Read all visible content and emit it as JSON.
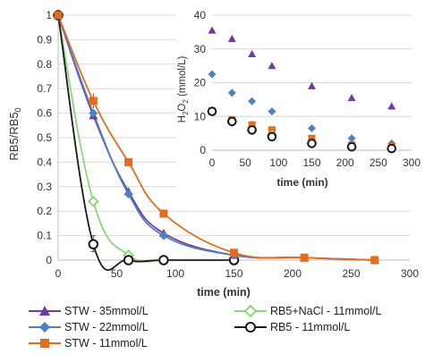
{
  "colors": {
    "stw35": "#6F3CA6",
    "stw22": "#4F81BD",
    "stw11": "#E36C1E",
    "nacl": "#8FD67B",
    "rb5": "#1A1A1A",
    "grid": "#D9D9D9",
    "axis": "#BFBFBF"
  },
  "chart_data": [
    {
      "type": "line",
      "xlabel": "time (min)",
      "ylabel": "RB5/RB5",
      "ylabel_subscript": "0",
      "xlim": [
        0,
        300
      ],
      "ylim": [
        0,
        1
      ],
      "x_ticks": [
        "0",
        "50",
        "100",
        "150",
        "200",
        "250",
        "300"
      ],
      "y_ticks": [
        "0",
        "0.1",
        "0.2",
        "0.3",
        "0.4",
        "0.5",
        "0.6",
        "0.7",
        "0.8",
        "0.9",
        "1"
      ],
      "grid": "horizontal",
      "legend": "bottom",
      "series": [
        {
          "name": "STW - 35mmol/L",
          "marker": "triangle",
          "color": "#6F3CA6",
          "x": [
            0,
            30,
            60,
            90,
            150,
            210,
            270
          ],
          "y": [
            1,
            0.59,
            0.28,
            0.11,
            0.02,
            0.01,
            0.0
          ]
        },
        {
          "name": "STW - 22mmol/L",
          "marker": "diamond",
          "color": "#4F81BD",
          "x": [
            0,
            30,
            60,
            90,
            150,
            210,
            270
          ],
          "y": [
            1,
            0.6,
            0.27,
            0.1,
            0.02,
            0.01,
            0.0
          ]
        },
        {
          "name": "STW - 11mmol/L",
          "marker": "square",
          "color": "#E36C1E",
          "x": [
            0,
            30,
            60,
            90,
            150,
            210,
            270
          ],
          "y": [
            1,
            0.65,
            0.4,
            0.19,
            0.03,
            0.01,
            0.0
          ]
        },
        {
          "name": "RB5+NaCl - 11mmol/L",
          "marker": "diamond-open",
          "color": "#8FD67B",
          "x": [
            0,
            30,
            60,
            90
          ],
          "y": [
            1,
            0.24,
            0.02,
            0.0
          ]
        },
        {
          "name": "RB5 - 11mmol/L",
          "marker": "circle-open",
          "color": "#1A1A1A",
          "x": [
            0,
            30,
            60,
            90,
            150
          ],
          "y": [
            1,
            0.065,
            0.0,
            0.0,
            0.0
          ]
        }
      ]
    },
    {
      "type": "scatter",
      "xlabel": "time (min)",
      "ylabel": "H2O2 (mmol/L)",
      "xlim": [
        0,
        300
      ],
      "ylim": [
        0,
        40
      ],
      "x_ticks": [
        "0",
        "50",
        "100",
        "150",
        "200",
        "250",
        "300"
      ],
      "y_ticks": [
        "0",
        "10",
        "20",
        "30",
        "40"
      ],
      "grid": "horizontal",
      "series": [
        {
          "name": "STW - 35mmol/L",
          "marker": "triangle",
          "color": "#6F3CA6",
          "x": [
            0,
            30,
            60,
            90,
            150,
            210,
            270
          ],
          "y": [
            35.5,
            33,
            28.5,
            25,
            19,
            15.5,
            13
          ]
        },
        {
          "name": "STW - 22mmol/L",
          "marker": "diamond",
          "color": "#4F81BD",
          "x": [
            0,
            30,
            60,
            90,
            150,
            210,
            270
          ],
          "y": [
            22.5,
            17,
            14.5,
            11.5,
            6.5,
            3.5,
            2
          ]
        },
        {
          "name": "STW - 11mmol/L",
          "marker": "square",
          "color": "#E36C1E",
          "x": [
            0,
            30,
            60,
            90,
            150,
            210,
            270
          ],
          "y": [
            11.5,
            9,
            7.5,
            6,
            3.5,
            1.5,
            1
          ]
        },
        {
          "name": "RB5+NaCl - 11mmol/L",
          "marker": "diamond-open",
          "color": "#8FD67B",
          "x": [
            0,
            30,
            60,
            90,
            150,
            210,
            270
          ],
          "y": [
            11.5,
            8.5,
            6,
            4.5,
            2,
            1,
            0.5
          ]
        },
        {
          "name": "RB5 - 11mmol/L",
          "marker": "circle-open",
          "color": "#1A1A1A",
          "x": [
            0,
            30,
            60,
            90,
            150,
            210,
            270
          ],
          "y": [
            11.5,
            8.5,
            6,
            4,
            2,
            1,
            0.5
          ]
        }
      ]
    }
  ],
  "legend": {
    "items": [
      {
        "label": "STW - 35mmol/L",
        "marker": "triangle",
        "color": "#6F3CA6"
      },
      {
        "label": "RB5+NaCl - 11mmol/L",
        "marker": "diamond-open",
        "color": "#8FD67B"
      },
      {
        "label": "STW - 22mmol/L",
        "marker": "diamond",
        "color": "#4F81BD"
      },
      {
        "label": "RB5 - 11mmol/L",
        "marker": "circle-open",
        "color": "#1A1A1A"
      },
      {
        "label": "STW - 11mmol/L",
        "marker": "square",
        "color": "#E36C1E"
      }
    ]
  }
}
